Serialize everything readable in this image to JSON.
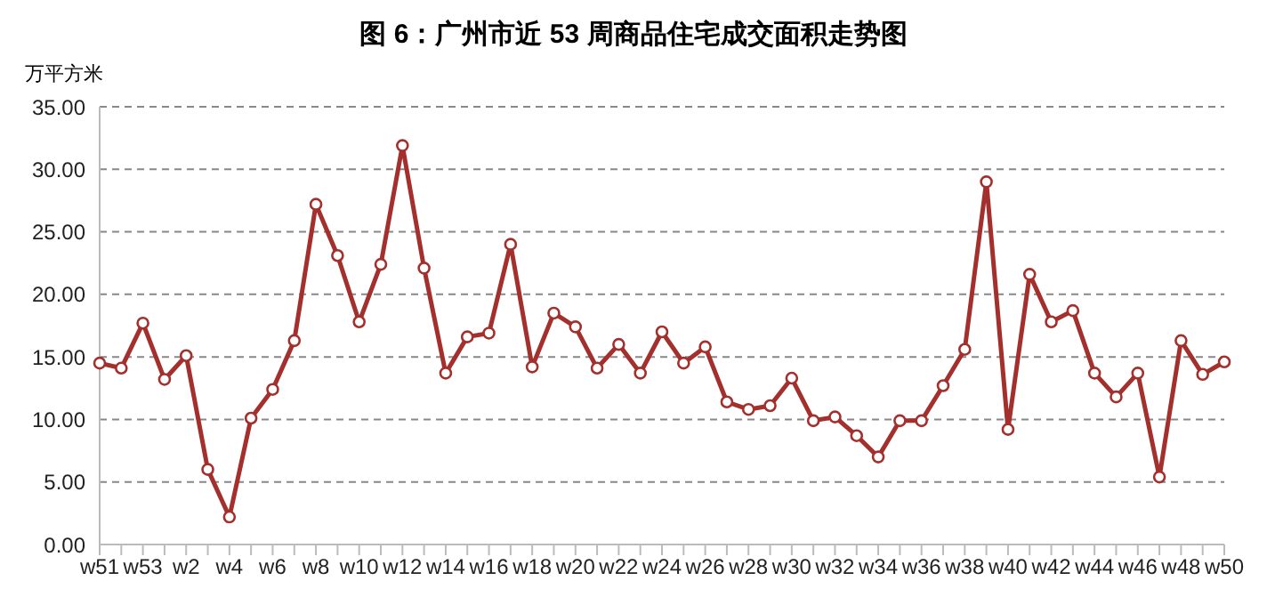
{
  "chart_data": {
    "type": "line",
    "title": "图 6：广州市近 53 周商品住宅成交面积走势图",
    "ylabel": "万平方米",
    "categories": [
      "w51",
      null,
      "w53",
      null,
      "w2",
      null,
      "w4",
      null,
      "w6",
      null,
      "w8",
      null,
      "w10",
      null,
      "w12",
      null,
      "w14",
      null,
      "w16",
      null,
      "w18",
      null,
      "w20",
      null,
      "w22",
      null,
      "w24",
      null,
      "w26",
      null,
      "w28",
      null,
      "w30",
      null,
      "w32",
      null,
      "w34",
      null,
      "w36",
      null,
      "w38",
      null,
      "w40",
      null,
      "w42",
      null,
      "w44",
      null,
      "w46",
      null,
      "w48",
      null,
      "w50"
    ],
    "series": [
      {
        "color": "#a3302d",
        "values": [
          14.5,
          14.1,
          17.7,
          13.2,
          15.1,
          6.0,
          2.2,
          10.1,
          12.4,
          16.3,
          27.2,
          23.1,
          17.8,
          22.4,
          31.9,
          22.1,
          13.7,
          16.6,
          16.9,
          24.0,
          14.2,
          18.5,
          17.4,
          14.1,
          16.0,
          13.7,
          17.0,
          14.5,
          15.8,
          11.4,
          10.8,
          11.1,
          13.3,
          9.9,
          10.2,
          8.7,
          7.0,
          9.9,
          9.9,
          12.7,
          15.6,
          29.0,
          9.2,
          21.6,
          17.8,
          18.7,
          13.7,
          11.8,
          13.7,
          5.4,
          16.3,
          13.6,
          14.6
        ]
      }
    ],
    "ylim": [
      0,
      35
    ],
    "yticks": [
      {
        "value": 0,
        "label": "0.00"
      },
      {
        "value": 5,
        "label": "5.00"
      },
      {
        "value": 10,
        "label": "10.00"
      },
      {
        "value": 15,
        "label": "15.00"
      },
      {
        "value": 20,
        "label": "20.00"
      },
      {
        "value": 25,
        "label": "25.00"
      },
      {
        "value": 30,
        "label": "30.00"
      },
      {
        "value": 35,
        "label": "35.00"
      }
    ],
    "grid": "y",
    "marker": "circle",
    "line_style": "solid",
    "legend": false
  }
}
